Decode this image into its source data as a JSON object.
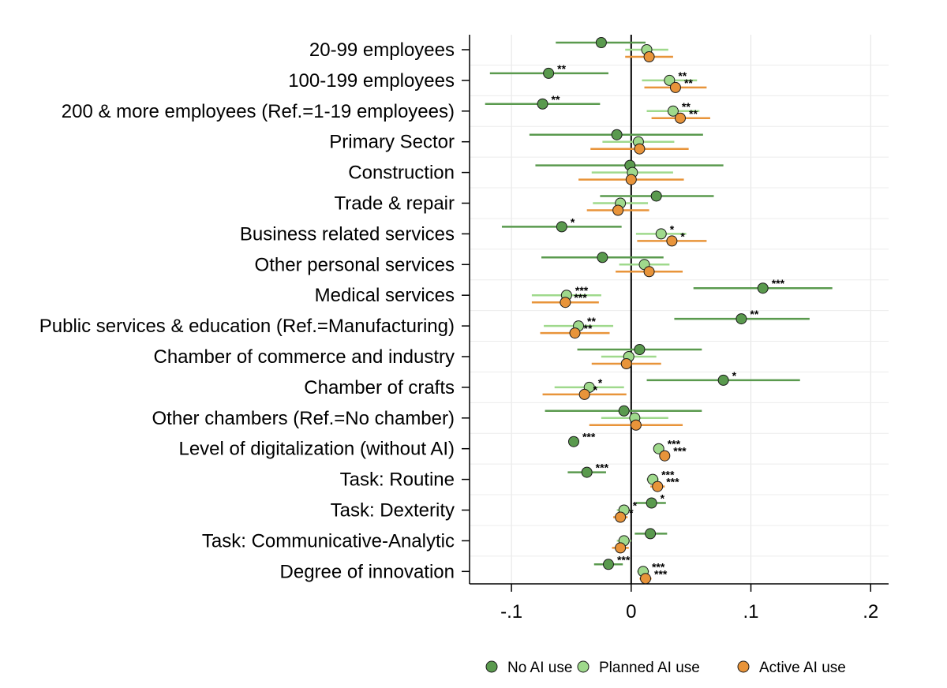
{
  "chart_data": {
    "type": "scatter",
    "xlim": [
      -0.135,
      0.215
    ],
    "x_ticks": [
      {
        "value": -0.1,
        "label": "-.1"
      },
      {
        "value": 0,
        "label": "0"
      },
      {
        "value": 0.1,
        "label": ".1"
      },
      {
        "value": 0.2,
        "label": ".2"
      }
    ],
    "grid": "vertical",
    "reference_line": 0,
    "legend_position": "bottom",
    "categories": [
      "20-99 employees",
      "100-199 employees",
      "200 & more employees (Ref.=1-19 employees)",
      "Primary Sector",
      "Construction",
      "Trade & repair",
      "Business related services",
      "Other personal services",
      "Medical services",
      "Public services & education (Ref.=Manufacturing)",
      "Chamber of commerce and industry",
      "Chamber of crafts",
      "Other chambers (Ref.=No chamber)",
      "Level of digitalization (without AI)",
      "Task: Routine",
      "Task: Dexterity",
      "Task: Communicative-Analytic",
      "Degree of innovation"
    ],
    "series": [
      {
        "name": "No AI use",
        "color": "#5a9a4e",
        "values": [
          -0.025,
          -0.069,
          -0.074,
          -0.012,
          -0.001,
          0.021,
          -0.058,
          -0.024,
          0.11,
          0.092,
          0.007,
          0.077,
          -0.006,
          -0.048,
          -0.037,
          0.017,
          0.016,
          -0.019
        ],
        "ci": [
          [
            -0.063,
            0.012
          ],
          [
            -0.118,
            -0.019
          ],
          [
            -0.122,
            -0.026
          ],
          [
            -0.085,
            0.06
          ],
          [
            -0.08,
            0.077
          ],
          [
            -0.026,
            0.069
          ],
          [
            -0.108,
            -0.008
          ],
          [
            -0.075,
            0.027
          ],
          [
            0.052,
            0.168
          ],
          [
            0.036,
            0.149
          ],
          [
            -0.045,
            0.059
          ],
          [
            0.013,
            0.141
          ],
          [
            -0.072,
            0.059
          ],
          [
            -0.05,
            -0.045
          ],
          [
            -0.053,
            -0.021
          ],
          [
            0.004,
            0.029
          ],
          [
            0.003,
            0.03
          ],
          [
            -0.031,
            -0.007
          ]
        ],
        "stars": [
          "",
          "**",
          "**",
          "",
          "",
          "",
          "*",
          "",
          "***",
          "**",
          "",
          "*",
          "",
          "***",
          "***",
          "*",
          "",
          "***"
        ]
      },
      {
        "name": "Planned AI use",
        "color": "#9fd98c",
        "values": [
          0.013,
          0.032,
          0.035,
          0.006,
          0.001,
          -0.009,
          0.025,
          0.011,
          -0.054,
          -0.044,
          -0.002,
          -0.035,
          0.003,
          0.023,
          0.018,
          -0.006,
          -0.006,
          0.01
        ],
        "ci": [
          [
            -0.005,
            0.031
          ],
          [
            0.009,
            0.055
          ],
          [
            0.013,
            0.057
          ],
          [
            -0.024,
            0.036
          ],
          [
            -0.033,
            0.035
          ],
          [
            -0.032,
            0.014
          ],
          [
            0.004,
            0.046
          ],
          [
            -0.01,
            0.032
          ],
          [
            -0.083,
            -0.025
          ],
          [
            -0.073,
            -0.015
          ],
          [
            -0.025,
            0.021
          ],
          [
            -0.064,
            -0.006
          ],
          [
            -0.025,
            0.031
          ],
          [
            0.02,
            0.026
          ],
          [
            0.013,
            0.023
          ],
          [
            -0.012,
            0.0
          ],
          [
            -0.012,
            0.0
          ],
          [
            0.005,
            0.015
          ]
        ],
        "stars": [
          "",
          "**",
          "**",
          "",
          "",
          "",
          "*",
          "",
          "***",
          "**",
          "",
          "*",
          "",
          "***",
          "***",
          "*",
          "",
          "***"
        ]
      },
      {
        "name": "Active AI use",
        "color": "#e8943a",
        "values": [
          0.015,
          0.037,
          0.041,
          0.007,
          0.0,
          -0.011,
          0.034,
          0.015,
          -0.055,
          -0.047,
          -0.004,
          -0.039,
          0.004,
          0.028,
          0.022,
          -0.009,
          -0.009,
          0.012
        ],
        "ci": [
          [
            -0.005,
            0.035
          ],
          [
            0.011,
            0.063
          ],
          [
            0.017,
            0.066
          ],
          [
            -0.034,
            0.048
          ],
          [
            -0.044,
            0.044
          ],
          [
            -0.037,
            0.015
          ],
          [
            0.005,
            0.063
          ],
          [
            -0.013,
            0.043
          ],
          [
            -0.083,
            -0.027
          ],
          [
            -0.076,
            -0.018
          ],
          [
            -0.033,
            0.025
          ],
          [
            -0.074,
            -0.004
          ],
          [
            -0.035,
            0.043
          ],
          [
            0.024,
            0.032
          ],
          [
            0.016,
            0.028
          ],
          [
            -0.015,
            -0.003
          ],
          [
            -0.016,
            -0.002
          ],
          [
            0.007,
            0.017
          ]
        ],
        "stars": [
          "",
          "**",
          "**",
          "",
          "",
          "",
          "*",
          "",
          "***",
          "**",
          "",
          "*",
          "",
          "***",
          "***",
          "*",
          "",
          "***"
        ]
      }
    ]
  }
}
